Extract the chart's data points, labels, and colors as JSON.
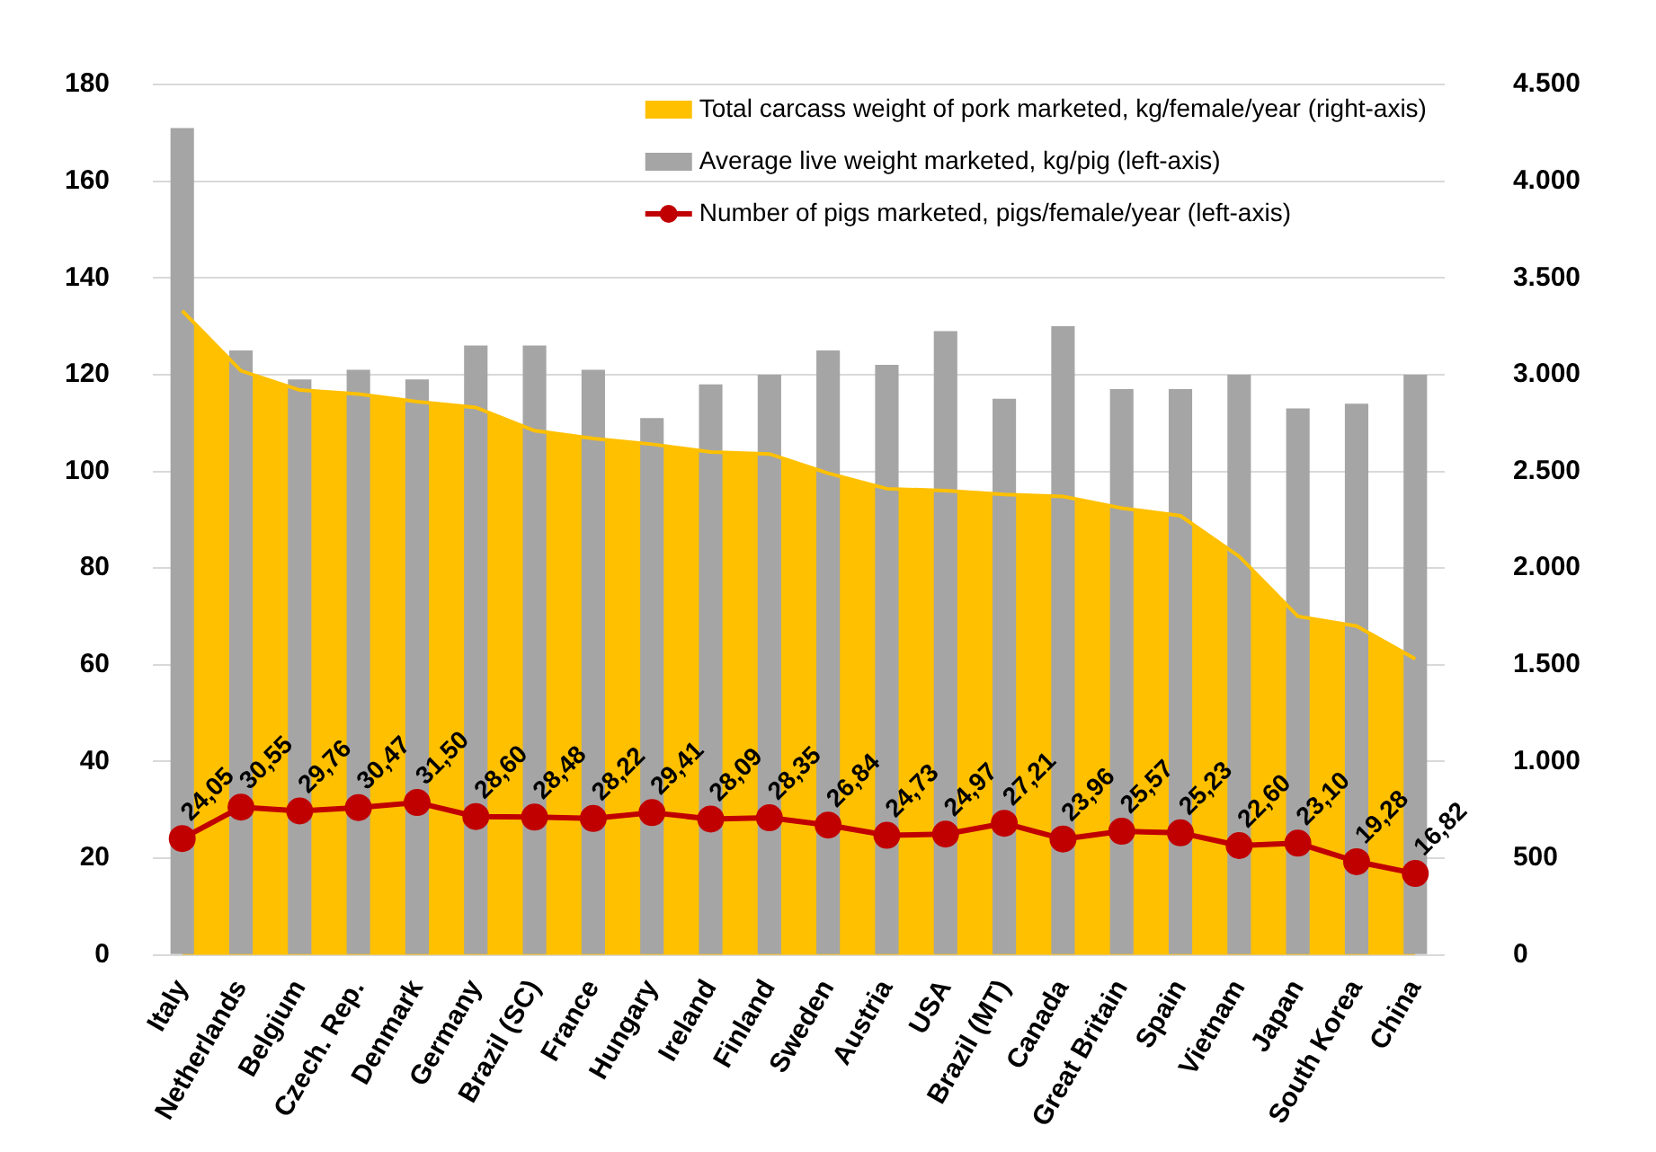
{
  "chart_data": {
    "type": "bar",
    "categories": [
      "Italy",
      "Netherlands",
      "Belgium",
      "Czech. Rep.",
      "Denmark",
      "Germany",
      "Brazil (SC)",
      "France",
      "Hungary",
      "Ireland",
      "Finland",
      "Sweden",
      "Austria",
      "USA",
      "Brazil (MT)",
      "Canada",
      "Great Britain",
      "Spain",
      "Vietnam",
      "Japan",
      "South Korea",
      "China"
    ],
    "series": [
      {
        "name": "Total carcass weight of pork marketed, kg/female/year (right-axis)",
        "type": "area",
        "axis": "y2",
        "color": "#ffc000",
        "values": [
          3330,
          3020,
          2920,
          2900,
          2860,
          2830,
          2710,
          2670,
          2640,
          2600,
          2590,
          2490,
          2410,
          2400,
          2380,
          2370,
          2310,
          2270,
          2060,
          1750,
          1700,
          1530
        ]
      },
      {
        "name": "Average live weight marketed, kg/pig (left-axis)",
        "color": "#a5a5a5",
        "values": [
          171,
          125,
          119,
          121,
          119,
          126,
          126,
          121,
          111,
          118,
          120,
          125,
          122,
          129,
          115,
          130,
          117,
          117,
          120,
          113,
          114,
          120
        ]
      },
      {
        "name": "Number of pigs marketed, pigs/female/year (left-axis)",
        "type": "line",
        "color": "#c00000",
        "marker": "circle",
        "values": [
          24.05,
          30.55,
          29.76,
          30.47,
          31.5,
          28.6,
          28.48,
          28.22,
          29.41,
          28.09,
          28.35,
          26.84,
          24.73,
          24.97,
          27.21,
          23.96,
          25.57,
          25.23,
          22.6,
          23.1,
          19.28,
          16.82
        ],
        "value_labels": [
          "24,05",
          "30,55",
          "29,76",
          "30,47",
          "31,50",
          "28,60",
          "28,48",
          "28,22",
          "29,41",
          "28,09",
          "28,35",
          "26,84",
          "24,73",
          "24,97",
          "27,21",
          "23,96",
          "25,57",
          "25,23",
          "22,60",
          "23,10",
          "19,28",
          "16,82"
        ]
      }
    ],
    "ylim": [
      0,
      180
    ],
    "yticks": [
      0,
      20,
      40,
      60,
      80,
      100,
      120,
      140,
      160,
      180
    ],
    "y2lim": [
      0,
      4500
    ],
    "y2ticks": [
      {
        "value": 0,
        "label": "0"
      },
      {
        "value": 500,
        "label": "500"
      },
      {
        "value": 1000,
        "label": "1.000"
      },
      {
        "value": 1500,
        "label": "1.500"
      },
      {
        "value": 2000,
        "label": "2.000"
      },
      {
        "value": 2500,
        "label": "2.500"
      },
      {
        "value": 3000,
        "label": "3.000"
      },
      {
        "value": 3500,
        "label": "3.500"
      },
      {
        "value": 4000,
        "label": "4.000"
      },
      {
        "value": 4500,
        "label": "4.500"
      }
    ],
    "grid": "y",
    "legend": "top right"
  }
}
